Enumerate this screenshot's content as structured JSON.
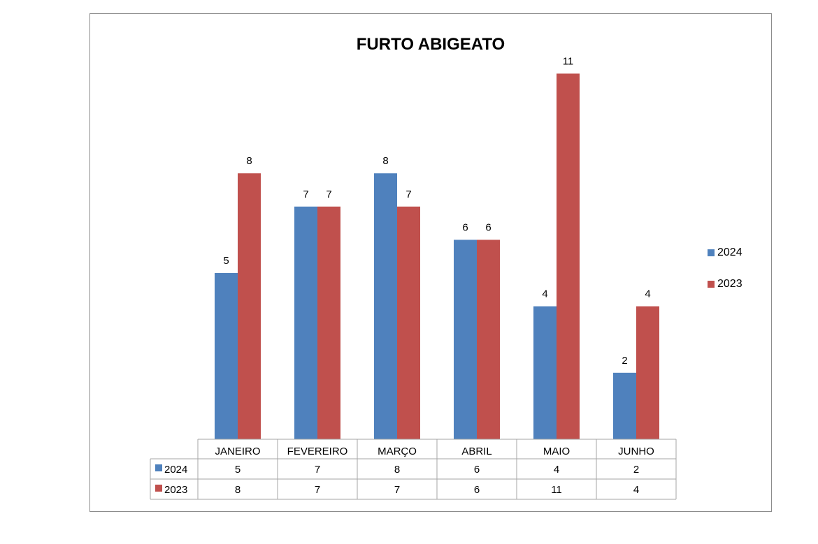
{
  "chart_data": {
    "type": "bar",
    "title": "FURTO ABIGEATO",
    "categories": [
      "JANEIRO",
      "FEVEREIRO",
      "MARÇO",
      "ABRIL",
      "MAIO",
      "JUNHO"
    ],
    "series": [
      {
        "name": "2024",
        "values": [
          5,
          7,
          8,
          6,
          4,
          2
        ],
        "color": "#4f81bd"
      },
      {
        "name": "2023",
        "values": [
          8,
          7,
          7,
          6,
          11,
          4
        ],
        "color": "#c0504d"
      }
    ],
    "ylim": [
      0,
      12
    ],
    "legend_position": "right",
    "data_table": true,
    "grid": false
  }
}
